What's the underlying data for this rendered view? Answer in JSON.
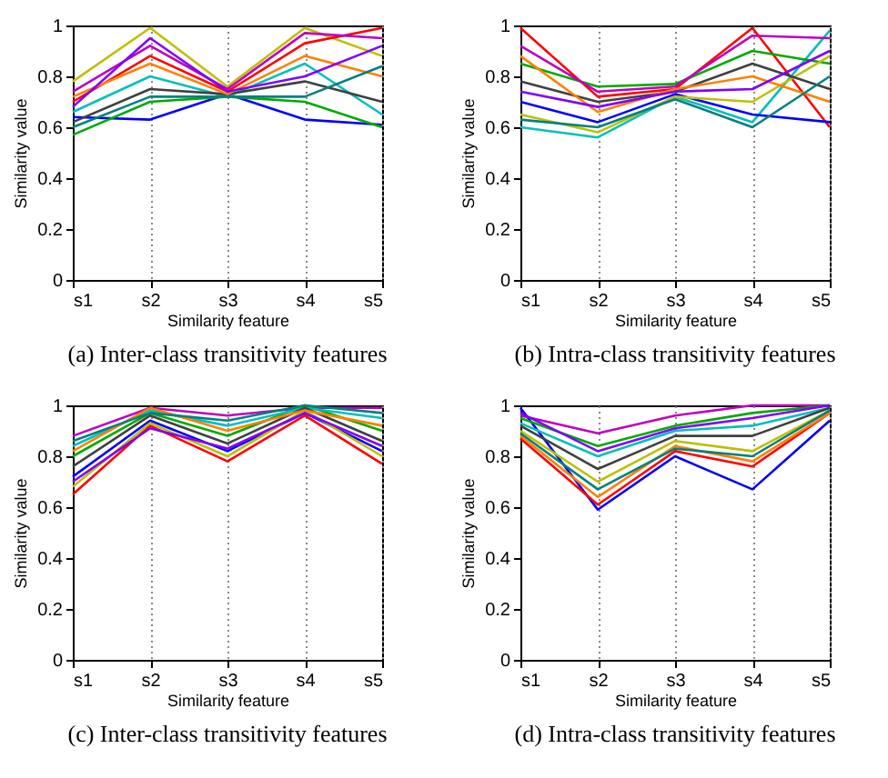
{
  "chart_data": [
    {
      "type": "line",
      "title": "(a) Inter-class transitivity features",
      "xlabel": "Similarity feature",
      "ylabel": "Similarity value",
      "categories": [
        "s1",
        "s2",
        "s3",
        "s4",
        "s5"
      ],
      "ylim": [
        0,
        1
      ],
      "yticks": [
        0,
        0.2,
        0.4,
        0.6,
        0.8,
        1
      ],
      "grid": "x",
      "series": [
        {
          "color": "#0000ff",
          "values": [
            0.64,
            0.63,
            0.73,
            0.63,
            0.61
          ]
        },
        {
          "color": "#00aa00",
          "values": [
            0.57,
            0.7,
            0.72,
            0.7,
            0.6
          ]
        },
        {
          "color": "#bfbf00",
          "values": [
            0.78,
            0.99,
            0.76,
            0.99,
            0.88
          ]
        },
        {
          "color": "#ff0000",
          "values": [
            0.7,
            0.88,
            0.74,
            0.93,
            0.99
          ]
        },
        {
          "color": "#00bfbf",
          "values": [
            0.66,
            0.8,
            0.72,
            0.85,
            0.65
          ]
        },
        {
          "color": "#bf00bf",
          "values": [
            0.74,
            0.92,
            0.75,
            0.97,
            0.95
          ]
        },
        {
          "color": "#404040",
          "values": [
            0.62,
            0.75,
            0.73,
            0.78,
            0.7
          ]
        },
        {
          "color": "#ff8000",
          "values": [
            0.72,
            0.85,
            0.73,
            0.88,
            0.8
          ]
        },
        {
          "color": "#8000ff",
          "values": [
            0.68,
            0.95,
            0.74,
            0.8,
            0.92
          ]
        },
        {
          "color": "#008080",
          "values": [
            0.6,
            0.72,
            0.72,
            0.72,
            0.84
          ]
        }
      ]
    },
    {
      "type": "line",
      "title": "(b) Intra-class transitivity features",
      "xlabel": "Similarity feature",
      "ylabel": "Similarity value",
      "categories": [
        "s1",
        "s2",
        "s3",
        "s4",
        "s5"
      ],
      "ylim": [
        0,
        1
      ],
      "yticks": [
        0,
        0.2,
        0.4,
        0.6,
        0.8,
        1
      ],
      "grid": "x",
      "series": [
        {
          "color": "#ff0000",
          "values": [
            0.99,
            0.72,
            0.75,
            0.99,
            0.6
          ]
        },
        {
          "color": "#00bfbf",
          "values": [
            0.6,
            0.56,
            0.72,
            0.62,
            0.98
          ]
        },
        {
          "color": "#00aa00",
          "values": [
            0.85,
            0.76,
            0.77,
            0.9,
            0.85
          ]
        },
        {
          "color": "#0000ff",
          "values": [
            0.7,
            0.62,
            0.73,
            0.65,
            0.62
          ]
        },
        {
          "color": "#bf00bf",
          "values": [
            0.92,
            0.74,
            0.76,
            0.96,
            0.95
          ]
        },
        {
          "color": "#bfbf00",
          "values": [
            0.65,
            0.58,
            0.72,
            0.7,
            0.88
          ]
        },
        {
          "color": "#404040",
          "values": [
            0.78,
            0.7,
            0.74,
            0.85,
            0.75
          ]
        },
        {
          "color": "#ff8000",
          "values": [
            0.88,
            0.66,
            0.75,
            0.8,
            0.7
          ]
        },
        {
          "color": "#8000ff",
          "values": [
            0.74,
            0.68,
            0.74,
            0.75,
            0.9
          ]
        },
        {
          "color": "#008080",
          "values": [
            0.63,
            0.6,
            0.71,
            0.6,
            0.8
          ]
        }
      ]
    },
    {
      "type": "line",
      "title": "(c) Inter-class transitivity features",
      "xlabel": "Similarity feature",
      "ylabel": "Similarity value",
      "categories": [
        "s1",
        "s2",
        "s3",
        "s4",
        "s5"
      ],
      "ylim": [
        0,
        1
      ],
      "yticks": [
        0,
        0.2,
        0.4,
        0.6,
        0.8,
        1
      ],
      "grid": "x",
      "series": [
        {
          "color": "#ff0000",
          "values": [
            0.65,
            0.92,
            0.78,
            0.96,
            0.77
          ]
        },
        {
          "color": "#bf00bf",
          "values": [
            0.88,
            0.99,
            0.96,
            0.99,
            0.99
          ]
        },
        {
          "color": "#00aa00",
          "values": [
            0.8,
            0.97,
            0.88,
            1.0,
            0.9
          ]
        },
        {
          "color": "#0000ff",
          "values": [
            0.72,
            0.94,
            0.82,
            0.97,
            0.82
          ]
        },
        {
          "color": "#00bfbf",
          "values": [
            0.84,
            0.98,
            0.92,
            0.99,
            0.95
          ]
        },
        {
          "color": "#bfbf00",
          "values": [
            0.68,
            0.93,
            0.8,
            0.98,
            0.8
          ]
        },
        {
          "color": "#404040",
          "values": [
            0.76,
            0.96,
            0.85,
            0.99,
            0.86
          ]
        },
        {
          "color": "#ff8000",
          "values": [
            0.82,
            0.99,
            0.9,
            0.98,
            0.92
          ]
        },
        {
          "color": "#8000ff",
          "values": [
            0.7,
            0.91,
            0.83,
            0.97,
            0.84
          ]
        },
        {
          "color": "#008080",
          "values": [
            0.86,
            0.97,
            0.94,
            1.0,
            0.97
          ]
        }
      ]
    },
    {
      "type": "line",
      "title": "(d) Intra-class transitivity features",
      "xlabel": "Similarity feature",
      "ylabel": "Similarity value",
      "categories": [
        "s1",
        "s2",
        "s3",
        "s4",
        "s5"
      ],
      "ylim": [
        0,
        1
      ],
      "yticks": [
        0,
        0.2,
        0.4,
        0.6,
        0.8,
        1
      ],
      "grid": "x",
      "series": [
        {
          "color": "#0000ff",
          "values": [
            0.99,
            0.59,
            0.8,
            0.67,
            0.94
          ]
        },
        {
          "color": "#bf00bf",
          "values": [
            0.96,
            0.89,
            0.96,
            1.0,
            1.0
          ]
        },
        {
          "color": "#ff0000",
          "values": [
            0.87,
            0.61,
            0.82,
            0.76,
            0.97
          ]
        },
        {
          "color": "#00aa00",
          "values": [
            0.95,
            0.84,
            0.92,
            0.97,
            1.0
          ]
        },
        {
          "color": "#bfbf00",
          "values": [
            0.9,
            0.7,
            0.86,
            0.82,
            0.98
          ]
        },
        {
          "color": "#00bfbf",
          "values": [
            0.93,
            0.8,
            0.9,
            0.92,
            0.99
          ]
        },
        {
          "color": "#ff8000",
          "values": [
            0.88,
            0.64,
            0.84,
            0.78,
            0.97
          ]
        },
        {
          "color": "#404040",
          "values": [
            0.92,
            0.75,
            0.88,
            0.88,
            0.99
          ]
        },
        {
          "color": "#8000ff",
          "values": [
            0.97,
            0.82,
            0.91,
            0.95,
            1.0
          ]
        },
        {
          "color": "#008080",
          "values": [
            0.89,
            0.67,
            0.83,
            0.8,
            0.98
          ]
        }
      ]
    }
  ]
}
